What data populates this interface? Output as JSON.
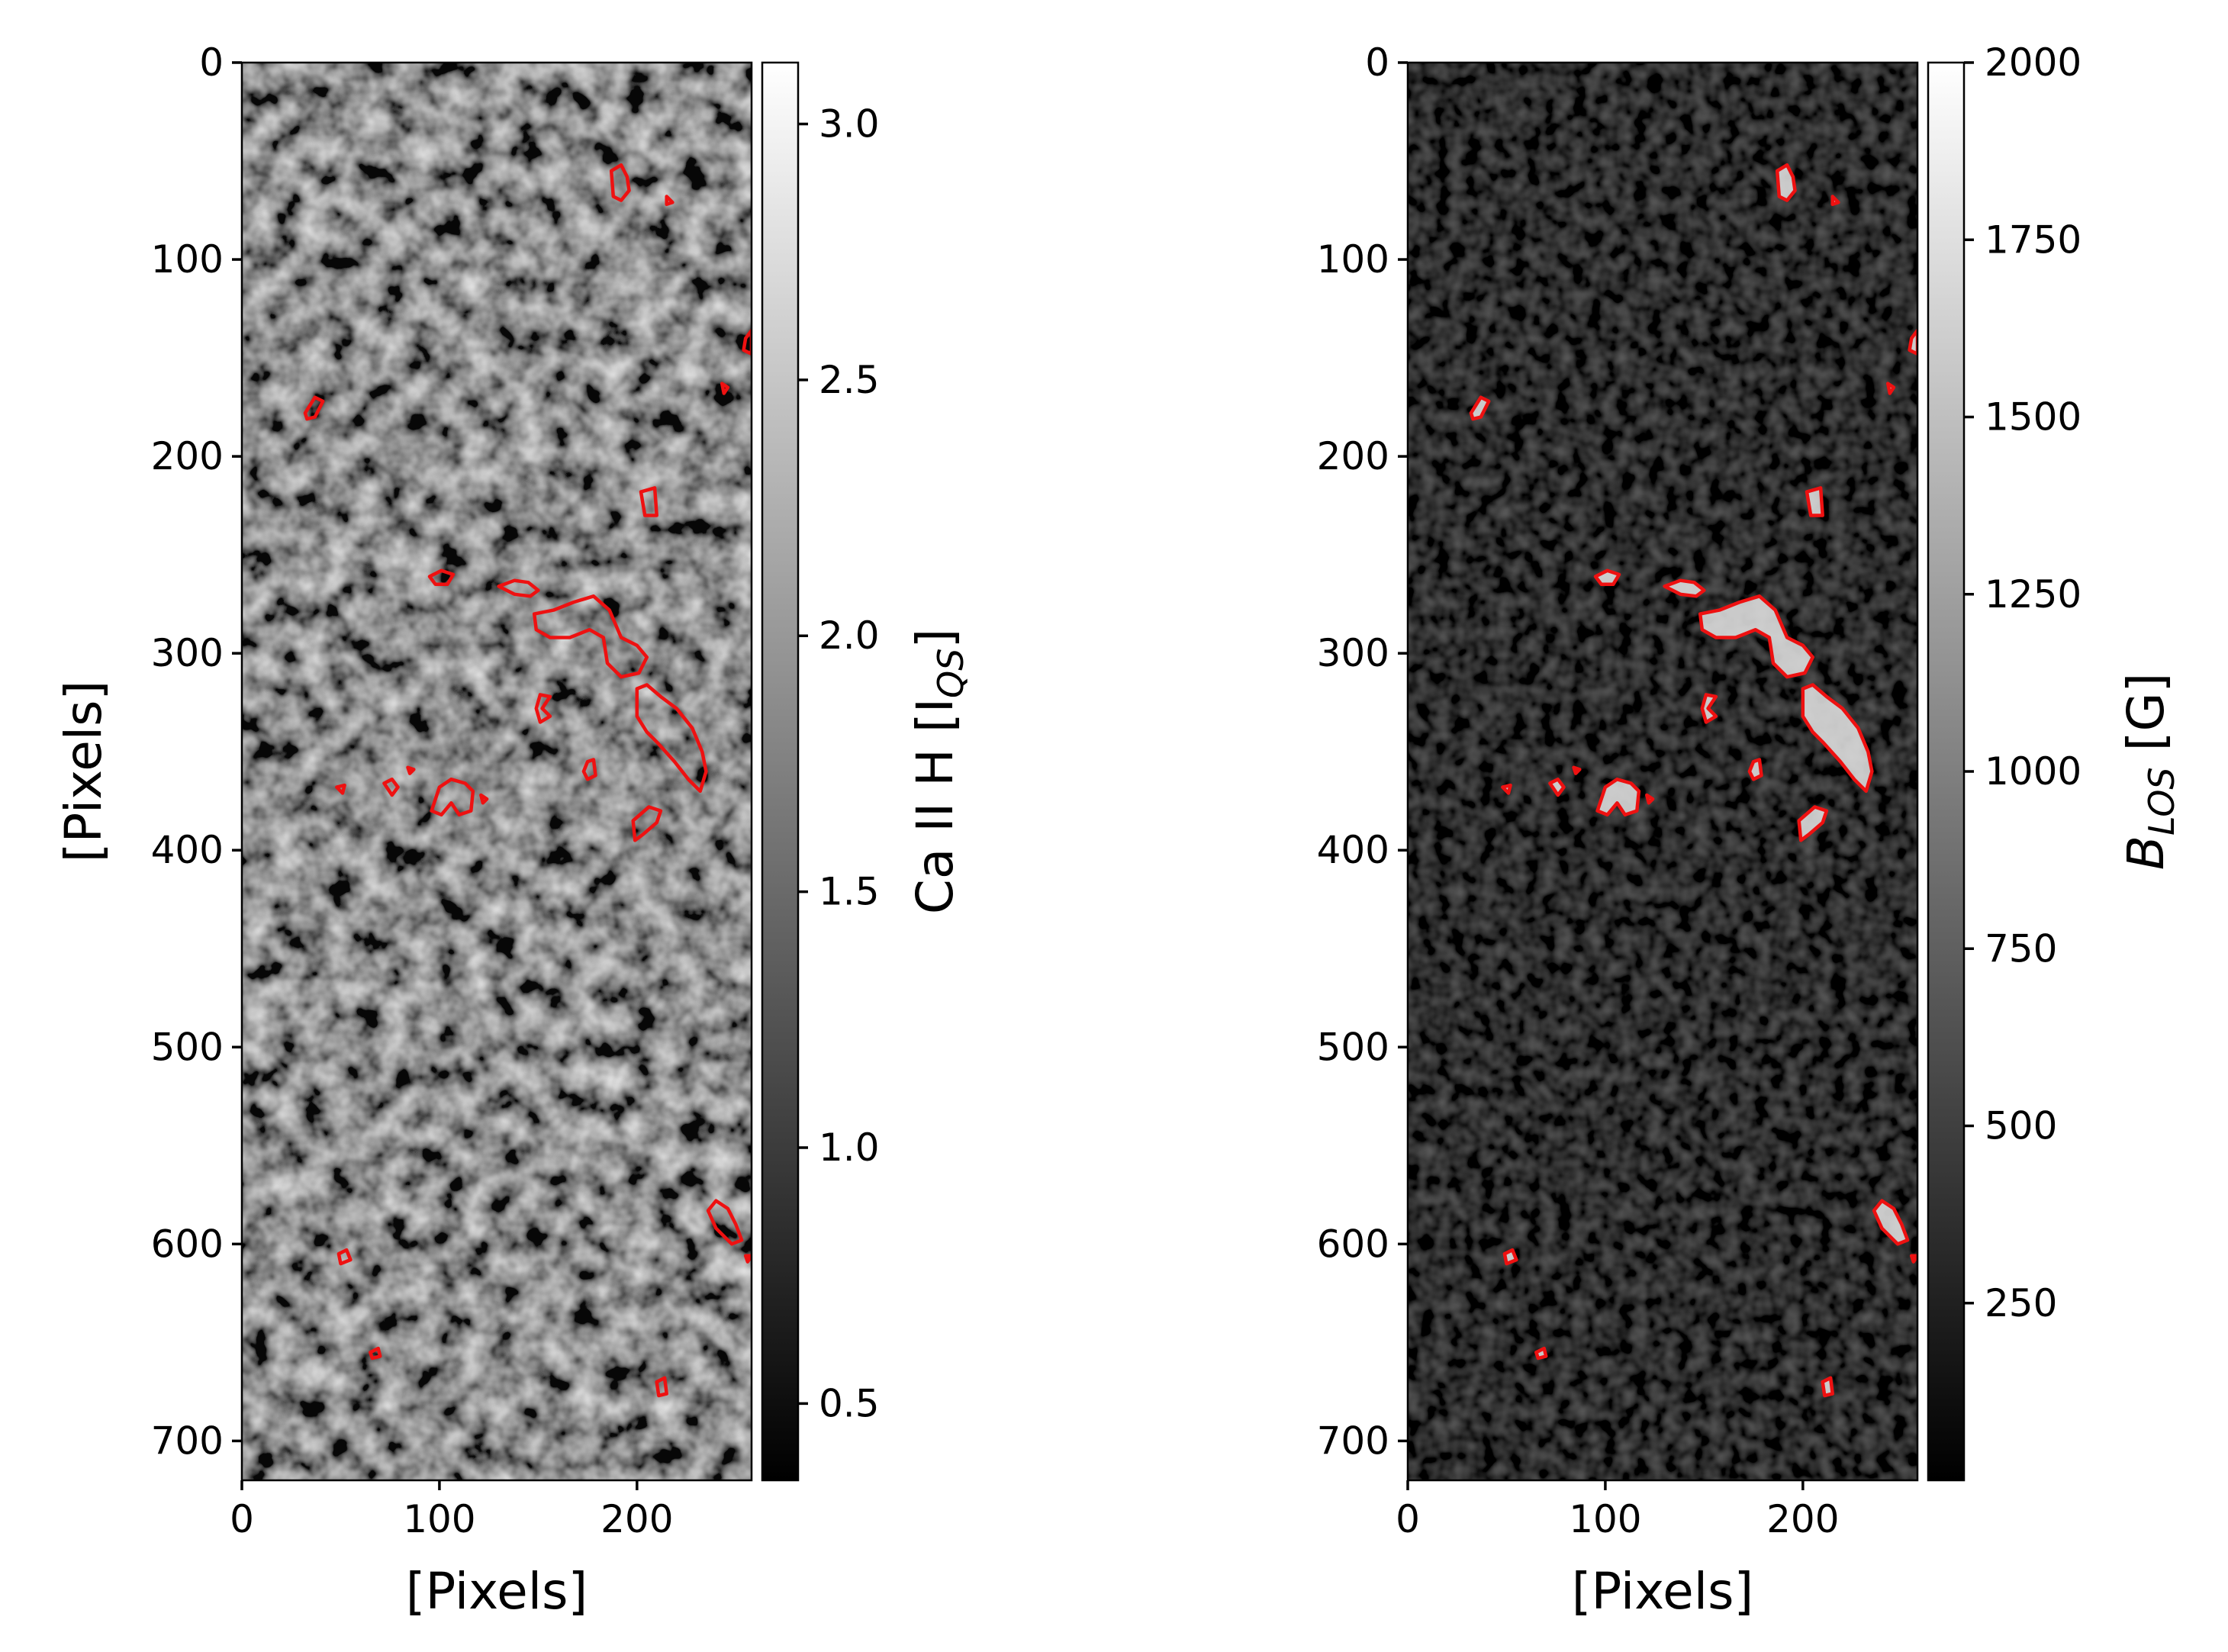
{
  "chart_data": [
    {
      "type": "heatmap",
      "panel": "left",
      "xlabel": "[Pixels]",
      "ylabel": "[Pixels]",
      "xlim": [
        0,
        258
      ],
      "ylim": [
        720,
        0
      ],
      "xticks": [
        "0",
        "100",
        "200"
      ],
      "yticks": [
        "0",
        "100",
        "200",
        "300",
        "400",
        "500",
        "600",
        "700"
      ],
      "colormap": "gray",
      "colorbar": {
        "label": "Ca II H [I",
        "label_sub": "QS",
        "label_end": "]",
        "range": [
          0.35,
          3.12
        ],
        "ticks": [
          "0.5",
          "1.0",
          "1.5",
          "2.0",
          "2.5",
          "3.0"
        ]
      },
      "contour_color": "#ee1111"
    },
    {
      "type": "heatmap",
      "panel": "right",
      "xlabel": "[Pixels]",
      "ylabel": "",
      "xlim": [
        0,
        258
      ],
      "ylim": [
        720,
        0
      ],
      "xticks": [
        "0",
        "100",
        "200"
      ],
      "yticks": [
        "0",
        "100",
        "200",
        "300",
        "400",
        "500",
        "600",
        "700"
      ],
      "colormap": "gray",
      "colorbar": {
        "label": "B",
        "label_sub": "LOS",
        "label_end": " [G]",
        "range": [
          0,
          2000
        ],
        "ticks": [
          "250",
          "500",
          "750",
          "1000",
          "1250",
          "1500",
          "1750",
          "2000"
        ]
      },
      "contour_color": "#ee1111"
    }
  ],
  "contours": [
    [
      [
        187,
        55
      ],
      [
        192,
        52
      ],
      [
        195,
        58
      ],
      [
        196,
        65
      ],
      [
        192,
        70
      ],
      [
        188,
        68
      ]
    ],
    [
      [
        215,
        68
      ],
      [
        218,
        71
      ],
      [
        215,
        72
      ]
    ],
    [
      [
        255,
        140
      ],
      [
        258,
        136
      ],
      [
        258,
        148
      ],
      [
        254,
        146
      ]
    ],
    [
      [
        243,
        163
      ],
      [
        246,
        165
      ],
      [
        244,
        168
      ]
    ],
    [
      [
        32,
        178
      ],
      [
        37,
        170
      ],
      [
        41,
        172
      ],
      [
        37,
        180
      ],
      [
        33,
        181
      ]
    ],
    [
      [
        202,
        218
      ],
      [
        209,
        216
      ],
      [
        210,
        230
      ],
      [
        204,
        230
      ]
    ],
    [
      [
        95,
        261
      ],
      [
        101,
        258
      ],
      [
        107,
        260
      ],
      [
        104,
        265
      ],
      [
        98,
        265
      ]
    ],
    [
      [
        130,
        266
      ],
      [
        138,
        263
      ],
      [
        145,
        264
      ],
      [
        150,
        268
      ],
      [
        146,
        271
      ],
      [
        138,
        270
      ]
    ],
    [
      [
        148,
        280
      ],
      [
        158,
        278
      ],
      [
        168,
        274
      ],
      [
        178,
        271
      ],
      [
        186,
        278
      ],
      [
        192,
        292
      ],
      [
        200,
        296
      ],
      [
        205,
        302
      ],
      [
        201,
        310
      ],
      [
        192,
        312
      ],
      [
        185,
        305
      ],
      [
        183,
        292
      ],
      [
        176,
        288
      ],
      [
        166,
        292
      ],
      [
        156,
        292
      ],
      [
        149,
        288
      ]
    ],
    [
      [
        200,
        318
      ],
      [
        205,
        316
      ],
      [
        212,
        322
      ],
      [
        220,
        328
      ],
      [
        228,
        338
      ],
      [
        233,
        350
      ],
      [
        235,
        360
      ],
      [
        232,
        370
      ],
      [
        226,
        364
      ],
      [
        219,
        355
      ],
      [
        210,
        345
      ],
      [
        205,
        340
      ],
      [
        200,
        332
      ]
    ],
    [
      [
        151,
        321
      ],
      [
        156,
        322
      ],
      [
        152,
        328
      ],
      [
        156,
        332
      ],
      [
        151,
        335
      ],
      [
        149,
        328
      ]
    ],
    [
      [
        175,
        355
      ],
      [
        178,
        354
      ],
      [
        179,
        362
      ],
      [
        175,
        364
      ],
      [
        173,
        360
      ]
    ],
    [
      [
        84,
        358
      ],
      [
        87,
        359
      ],
      [
        85,
        361
      ]
    ],
    [
      [
        72,
        366
      ],
      [
        76,
        364
      ],
      [
        79,
        368
      ],
      [
        76,
        372
      ]
    ],
    [
      [
        48,
        368
      ],
      [
        52,
        367
      ],
      [
        51,
        371
      ]
    ],
    [
      [
        100,
        368
      ],
      [
        106,
        364
      ],
      [
        113,
        366
      ],
      [
        117,
        370
      ],
      [
        116,
        380
      ],
      [
        110,
        382
      ],
      [
        106,
        376
      ],
      [
        101,
        382
      ],
      [
        96,
        380
      ]
    ],
    [
      [
        121,
        372
      ],
      [
        124,
        374
      ],
      [
        122,
        376
      ]
    ],
    [
      [
        198,
        385
      ],
      [
        206,
        378
      ],
      [
        212,
        380
      ],
      [
        210,
        386
      ],
      [
        203,
        392
      ],
      [
        199,
        395
      ]
    ],
    [
      [
        236,
        583
      ],
      [
        240,
        578
      ],
      [
        246,
        582
      ],
      [
        250,
        590
      ],
      [
        253,
        598
      ],
      [
        248,
        600
      ],
      [
        240,
        592
      ]
    ],
    [
      [
        255,
        606
      ],
      [
        258,
        606
      ],
      [
        256,
        609
      ]
    ],
    [
      [
        49,
        605
      ],
      [
        53,
        603
      ],
      [
        55,
        608
      ],
      [
        50,
        610
      ]
    ],
    [
      [
        65,
        655
      ],
      [
        69,
        653
      ],
      [
        70,
        657
      ],
      [
        66,
        658
      ]
    ],
    [
      [
        210,
        670
      ],
      [
        214,
        668
      ],
      [
        215,
        676
      ],
      [
        211,
        677
      ]
    ]
  ]
}
